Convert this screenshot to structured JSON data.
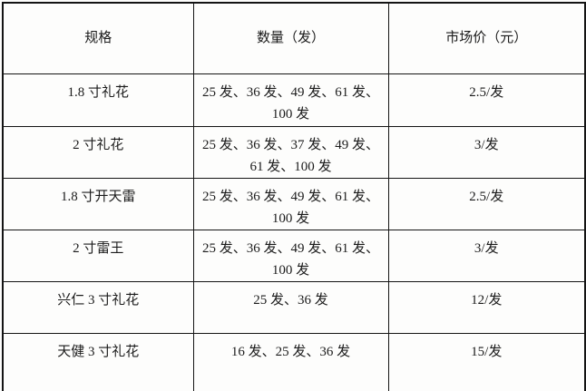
{
  "table": {
    "columns": [
      {
        "label": "规格"
      },
      {
        "label": "数量（发）"
      },
      {
        "label": "市场价（元）"
      }
    ],
    "rows": [
      {
        "spec": "1.8 寸礼花",
        "quantity": "25 发、36 发、49 发、61 发、100 发",
        "price": "2.5/发"
      },
      {
        "spec": "2 寸礼花",
        "quantity": "25 发、36 发、37 发、49 发、61 发、100 发",
        "price": "3/发"
      },
      {
        "spec": "1.8 寸开天雷",
        "quantity": "25 发、36 发、49 发、61 发、100 发",
        "price": "2.5/发"
      },
      {
        "spec": "2 寸雷王",
        "quantity": "25 发、36 发、49 发、61 发、100 发",
        "price": "3/发"
      },
      {
        "spec": "兴仁 3 寸礼花",
        "quantity": "25 发、36 发",
        "price": "12/发"
      },
      {
        "spec": "天健 3 寸礼花",
        "quantity": "16 发、25 发、36 发",
        "price": "15/发"
      }
    ],
    "colors": {
      "border": "#141414",
      "background": "#fdfdfc",
      "text": "#1b1b1b"
    }
  }
}
